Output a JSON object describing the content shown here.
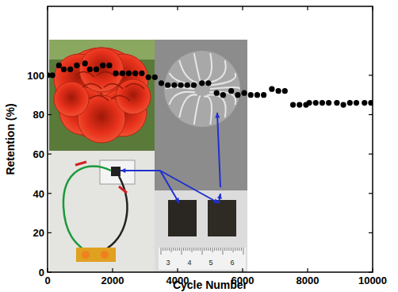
{
  "chart_data": {
    "type": "scatter",
    "x_label": "Cycle Number",
    "y_label": "Retention (%)",
    "x": [
      0,
      150,
      350,
      500,
      700,
      900,
      1150,
      1300,
      1500,
      1700,
      1900,
      2100,
      2300,
      2500,
      2700,
      2900,
      3100,
      3300,
      3500,
      3700,
      3900,
      4100,
      4300,
      4500,
      4750,
      4950,
      5200,
      5400,
      5650,
      5850,
      6050,
      6250,
      6450,
      6650,
      6900,
      7100,
      7300,
      7550,
      7750,
      7950,
      8050,
      8250,
      8450,
      8650,
      8900,
      9100,
      9300,
      9500,
      9750,
      9950
    ],
    "values": [
      100,
      100,
      105,
      103,
      103,
      105,
      106,
      103,
      103,
      105,
      105,
      101,
      101,
      101,
      101,
      101,
      99,
      99,
      96,
      95,
      95,
      95,
      95,
      95,
      96,
      96,
      91,
      90,
      92,
      90,
      91,
      90,
      90,
      90,
      93,
      92,
      92,
      85,
      85,
      85,
      86,
      86,
      86,
      86,
      86,
      85,
      86,
      86,
      86,
      86
    ],
    "color": "#000000",
    "marker": "circle",
    "xlim": [
      0,
      10000
    ],
    "xticks": [
      0,
      2000,
      4000,
      6000,
      8000,
      10000
    ],
    "ylim": [
      0,
      135
    ],
    "yticks": [
      0,
      20,
      40,
      60,
      80,
      100
    ],
    "annotations": [
      "3",
      "4",
      "5",
      "6"
    ]
  }
}
